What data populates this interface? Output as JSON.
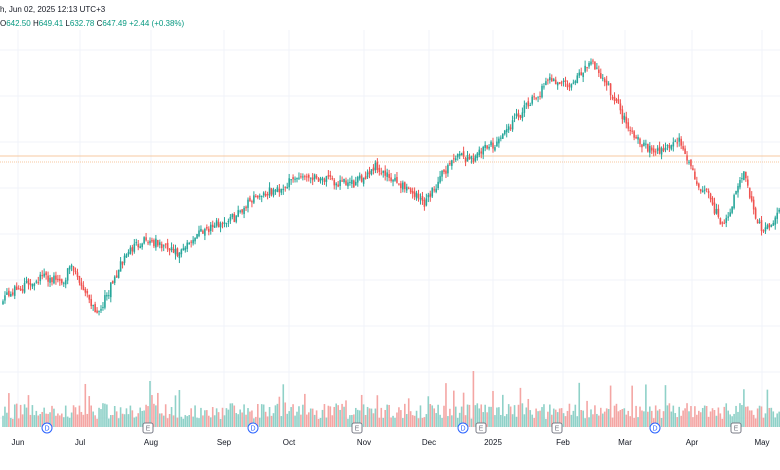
{
  "header": {
    "title_fragment": "h, Jun 02, 2025 12:13 UTC+3",
    "ohlc": {
      "open_label": "O",
      "open": "642.50",
      "high_label": "H",
      "high": "649.41",
      "low_label": "L",
      "low": "632.78",
      "close_label": "C",
      "close": "647.49",
      "change": "+2.44 (+0.38%)"
    }
  },
  "colors": {
    "up": "#26a69a",
    "down": "#ef5350",
    "up_volume": "#8fd1c8",
    "down_volume": "#f4a6a4",
    "grid": "#f0f3fa",
    "price_line": "#f7c9a0",
    "marker_dividend": "#2962ff",
    "marker_earnings": "#787b86"
  },
  "x_axis": {
    "months": [
      "Jun",
      "Jul",
      "Aug",
      "Sep",
      "Oct",
      "Nov",
      "Dec",
      "2025",
      "Feb",
      "Mar",
      "Apr",
      "May"
    ]
  },
  "markers": [
    {
      "type": "dividend",
      "label": "D",
      "month": "Jun"
    },
    {
      "type": "earnings",
      "label": "E",
      "month": "Aug"
    },
    {
      "type": "dividend",
      "label": "D",
      "month": "Sep"
    },
    {
      "type": "earnings",
      "label": "E",
      "month": "Nov"
    },
    {
      "type": "dividend",
      "label": "D",
      "month": "Dec"
    },
    {
      "type": "earnings",
      "label": "E",
      "month": "2025"
    },
    {
      "type": "earnings",
      "label": "E",
      "month": "Feb"
    },
    {
      "type": "dividend",
      "label": "D",
      "month": "Mar"
    },
    {
      "type": "earnings",
      "label": "E",
      "month": "May"
    }
  ],
  "chart_data": {
    "type": "candlestick",
    "interval": "daily",
    "path_keypoints": [
      [
        0,
        493
      ],
      [
        10,
        502
      ],
      [
        20,
        512
      ],
      [
        30,
        508
      ],
      [
        35,
        520
      ],
      [
        42,
        498
      ],
      [
        48,
        478
      ],
      [
        52,
        490
      ],
      [
        63,
        534
      ],
      [
        72,
        548
      ],
      [
        80,
        542
      ],
      [
        90,
        532
      ],
      [
        100,
        555
      ],
      [
        110,
        562
      ],
      [
        118,
        568
      ],
      [
        128,
        588
      ],
      [
        140,
        594
      ],
      [
        152,
        608
      ],
      [
        162,
        606
      ],
      [
        170,
        600
      ],
      [
        180,
        600
      ],
      [
        190,
        617
      ],
      [
        198,
        603
      ],
      [
        205,
        598
      ],
      [
        215,
        582
      ],
      [
        230,
        625
      ],
      [
        240,
        625
      ],
      [
        252,
        640
      ],
      [
        262,
        662
      ],
      [
        272,
        682
      ],
      [
        280,
        700
      ],
      [
        290,
        692
      ],
      [
        300,
        718
      ],
      [
        310,
        688
      ],
      [
        318,
        658
      ],
      [
        325,
        640
      ],
      [
        333,
        628
      ],
      [
        345,
        642
      ],
      [
        354,
        600
      ],
      [
        360,
        588
      ],
      [
        367,
        560
      ],
      [
        372,
        580
      ],
      [
        378,
        612
      ],
      [
        383,
        574
      ],
      [
        388,
        552
      ],
      [
        397,
        575
      ]
    ]
  }
}
